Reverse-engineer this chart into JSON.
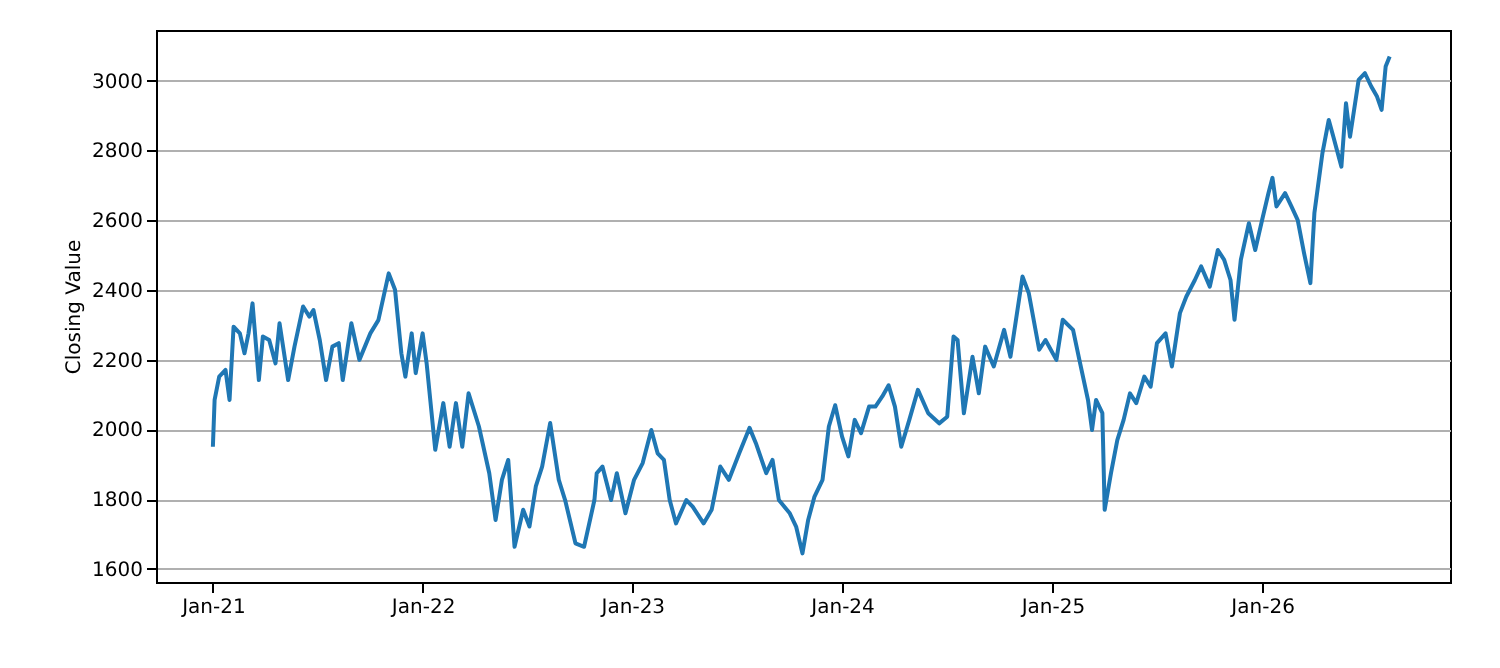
{
  "chart_data": {
    "type": "line",
    "ylabel": "Closing Value",
    "xlim": [
      "2020-09-24",
      "2026-11-24"
    ],
    "ylim": [
      1562,
      3145
    ],
    "yticks": [
      1600,
      1800,
      2000,
      2200,
      2400,
      2600,
      2800,
      3000
    ],
    "xticks": [
      {
        "value": "2021-01-01",
        "label": "Jan-21"
      },
      {
        "value": "2022-01-01",
        "label": "Jan-22"
      },
      {
        "value": "2023-01-01",
        "label": "Jan-23"
      },
      {
        "value": "2024-01-01",
        "label": "Jan-24"
      },
      {
        "value": "2025-01-01",
        "label": "Jan-25"
      },
      {
        "value": "2026-01-01",
        "label": "Jan-26"
      }
    ],
    "grid": "y",
    "marker": "none",
    "line_style": "solid",
    "series": [
      {
        "color": "#1f77b4",
        "x": [
          "2021-01-01",
          "2021-01-04",
          "2021-01-12",
          "2021-01-23",
          "2021-01-30",
          "2021-02-06",
          "2021-02-17",
          "2021-02-25",
          "2021-03-04",
          "2021-03-11",
          "2021-03-22",
          "2021-03-29",
          "2021-04-09",
          "2021-04-20",
          "2021-04-27",
          "2021-05-12",
          "2021-05-23",
          "2021-06-07",
          "2021-06-18",
          "2021-06-25",
          "2021-07-06",
          "2021-07-17",
          "2021-07-28",
          "2021-08-08",
          "2021-08-15",
          "2021-08-30",
          "2021-09-13",
          "2021-10-02",
          "2021-10-16",
          "2021-11-03",
          "2021-11-14",
          "2021-11-25",
          "2021-12-02",
          "2021-12-13",
          "2021-12-20",
          "2022-01-01",
          "2022-01-08",
          "2022-01-23",
          "2022-02-06",
          "2022-02-17",
          "2022-02-28",
          "2022-03-11",
          "2022-03-22",
          "2022-04-09",
          "2022-04-27",
          "2022-05-08",
          "2022-05-19",
          "2022-05-30",
          "2022-06-10",
          "2022-06-25",
          "2022-07-06",
          "2022-07-17",
          "2022-07-28",
          "2022-08-11",
          "2022-08-26",
          "2022-09-06",
          "2022-09-24",
          "2022-10-09",
          "2022-10-27",
          "2022-10-31",
          "2022-11-10",
          "2022-11-25",
          "2022-12-05",
          "2022-12-20",
          "2023-01-04",
          "2023-01-19",
          "2023-02-03",
          "2023-02-14",
          "2023-02-25",
          "2023-03-07",
          "2023-03-18",
          "2023-04-05",
          "2023-04-16",
          "2023-05-05",
          "2023-05-19",
          "2023-06-03",
          "2023-06-18",
          "2023-07-06",
          "2023-07-24",
          "2023-08-04",
          "2023-08-22",
          "2023-09-02",
          "2023-09-13",
          "2023-10-02",
          "2023-10-13",
          "2023-10-24",
          "2023-11-03",
          "2023-11-14",
          "2023-11-28",
          "2023-12-09",
          "2023-12-20",
          "2024-01-01",
          "2024-01-12",
          "2024-01-23",
          "2024-02-03",
          "2024-02-17",
          "2024-02-28",
          "2024-03-11",
          "2024-03-22",
          "2024-04-02",
          "2024-04-13",
          "2024-04-27",
          "2024-05-12",
          "2024-05-30",
          "2024-06-18",
          "2024-07-02",
          "2024-07-13",
          "2024-07-20",
          "2024-07-31",
          "2024-08-15",
          "2024-08-26",
          "2024-09-06",
          "2024-09-21",
          "2024-10-09",
          "2024-10-20",
          "2024-11-10",
          "2024-11-21",
          "2024-12-09",
          "2024-12-20",
          "2025-01-08",
          "2025-01-19",
          "2025-02-06",
          "2025-02-17",
          "2025-03-04",
          "2025-03-11",
          "2025-03-18",
          "2025-03-29",
          "2025-04-02",
          "2025-04-13",
          "2025-04-24",
          "2025-05-05",
          "2025-05-16",
          "2025-05-27",
          "2025-06-10",
          "2025-06-21",
          "2025-07-02",
          "2025-07-17",
          "2025-07-28",
          "2025-08-11",
          "2025-08-22",
          "2025-09-06",
          "2025-09-17",
          "2025-10-02",
          "2025-10-16",
          "2025-10-27",
          "2025-11-07",
          "2025-11-14",
          "2025-11-25",
          "2025-12-09",
          "2025-12-20",
          "2026-01-01",
          "2026-01-12",
          "2026-01-19",
          "2026-01-26",
          "2026-02-10",
          "2026-02-21",
          "2026-03-04",
          "2026-03-15",
          "2026-03-26",
          "2026-04-02",
          "2026-04-16",
          "2026-04-27",
          "2026-05-05",
          "2026-05-19",
          "2026-05-27",
          "2026-06-03",
          "2026-06-18",
          "2026-06-29",
          "2026-07-10",
          "2026-07-20",
          "2026-07-28",
          "2026-08-04",
          "2026-08-11"
        ],
        "values": [
          1950,
          2084,
          2151,
          2170,
          2084,
          2294,
          2275,
          2218,
          2275,
          2361,
          2141,
          2266,
          2256,
          2189,
          2304,
          2141,
          2237,
          2352,
          2323,
          2342,
          2256,
          2141,
          2237,
          2247,
          2141,
          2304,
          2199,
          2275,
          2313,
          2447,
          2400,
          2218,
          2151,
          2275,
          2161,
          2275,
          2189,
          1941,
          2075,
          1950,
          2075,
          1950,
          2103,
          2008,
          1874,
          1740,
          1855,
          1912,
          1663,
          1769,
          1721,
          1836,
          1893,
          2018,
          1855,
          1797,
          1673,
          1663,
          1797,
          1874,
          1893,
          1797,
          1874,
          1759,
          1855,
          1903,
          1998,
          1931,
          1912,
          1797,
          1730,
          1797,
          1778,
          1730,
          1769,
          1893,
          1855,
          1931,
          2004,
          1960,
          1874,
          1912,
          1797,
          1759,
          1721,
          1644,
          1740,
          1807,
          1855,
          2008,
          2069,
          1979,
          1922,
          2027,
          1989,
          2065,
          2065,
          2094,
          2126,
          2065,
          1950,
          2027,
          2113,
          2046,
          2017,
          2036,
          2266,
          2256,
          2046,
          2208,
          2103,
          2237,
          2180,
          2285,
          2208,
          2438,
          2390,
          2228,
          2256,
          2199,
          2314,
          2285,
          2199,
          2084,
          1998,
          2084,
          2046,
          1769,
          1874,
          1969,
          2027,
          2103,
          2075,
          2151,
          2122,
          2247,
          2275,
          2180,
          2333,
          2380,
          2428,
          2467,
          2409,
          2514,
          2486,
          2428,
          2314,
          2486,
          2591,
          2514,
          2600,
          2677,
          2721,
          2639,
          2677,
          2639,
          2600,
          2505,
          2419,
          2620,
          2792,
          2887,
          2839,
          2753,
          2935,
          2839,
          3002,
          3021,
          2983,
          2954,
          2916,
          3040,
          3069
        ]
      }
    ]
  }
}
